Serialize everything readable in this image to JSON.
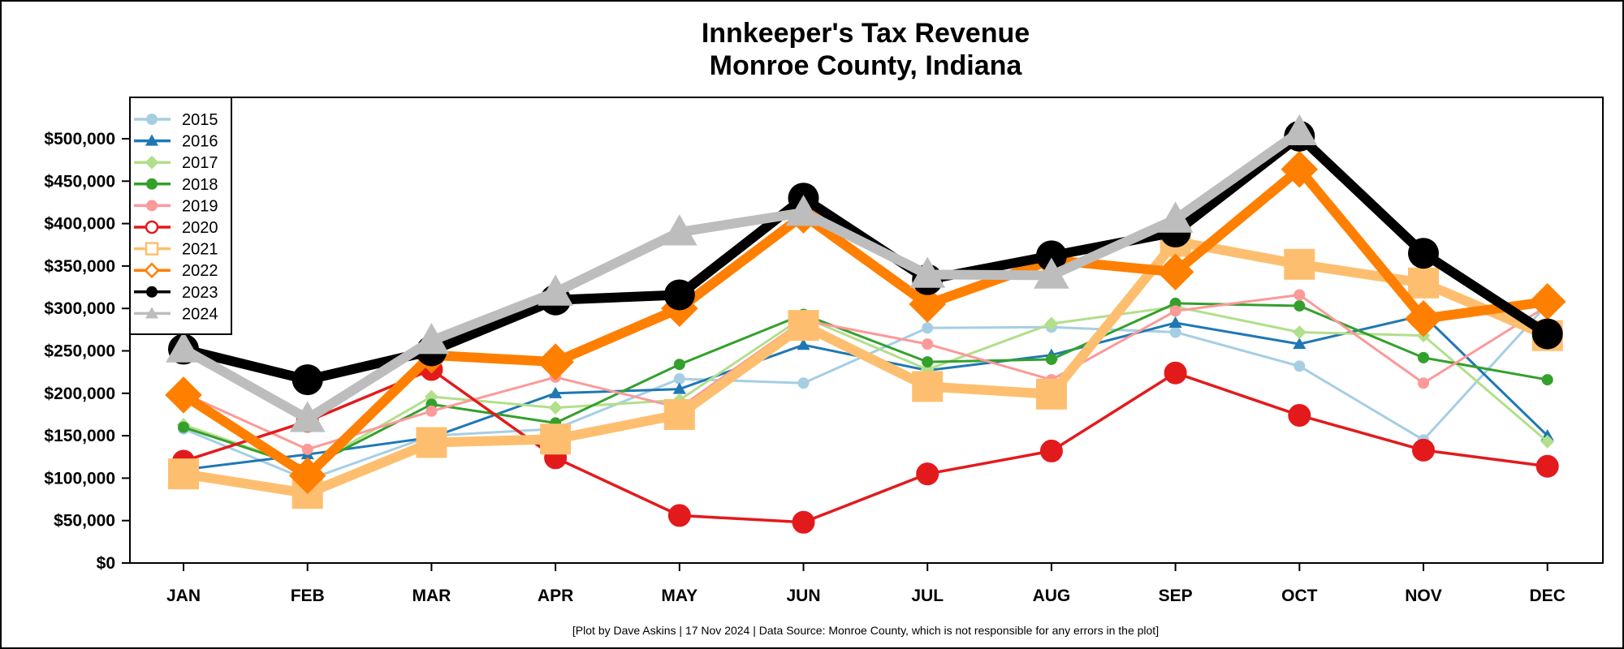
{
  "chart_data": {
    "type": "line",
    "title": "Innkeeper's Tax Revenue",
    "subtitle": "Monroe County, Indiana",
    "xlabel": "",
    "ylabel": "",
    "ylim": [
      0,
      550000
    ],
    "yticks": [
      0,
      50000,
      100000,
      150000,
      200000,
      250000,
      300000,
      350000,
      400000,
      450000,
      500000
    ],
    "ytick_labels": [
      "$0",
      "$50,000",
      "$100,000",
      "$150,000",
      "$200,000",
      "$250,000",
      "$300,000",
      "$350,000",
      "$400,000",
      "$450,000",
      "$500,000"
    ],
    "categories": [
      "JAN",
      "FEB",
      "MAR",
      "APR",
      "MAY",
      "JUN",
      "JUL",
      "AUG",
      "SEP",
      "OCT",
      "NOV",
      "DEC"
    ],
    "legend_position": "top-left",
    "grid": false,
    "series": [
      {
        "name": "2015",
        "color": "#a6cee3",
        "marker": "circle",
        "weight": "thin",
        "values": [
          158000,
          98000,
          150000,
          158000,
          217000,
          212000,
          277000,
          278000,
          272000,
          232000,
          145000,
          305000
        ]
      },
      {
        "name": "2016",
        "color": "#1f78b4",
        "marker": "triangle",
        "weight": "thin",
        "values": [
          110000,
          128000,
          148000,
          200000,
          205000,
          257000,
          227000,
          245000,
          283000,
          258000,
          292000,
          150000
        ]
      },
      {
        "name": "2017",
        "color": "#b2df8a",
        "marker": "diamond",
        "weight": "thin",
        "values": [
          163000,
          112000,
          196000,
          183000,
          192000,
          290000,
          228000,
          282000,
          302000,
          272000,
          268000,
          143000
        ]
      },
      {
        "name": "2018",
        "color": "#33a02c",
        "marker": "circle",
        "weight": "thin",
        "values": [
          160000,
          112000,
          187000,
          165000,
          234000,
          293000,
          237000,
          240000,
          306000,
          303000,
          242000,
          216000
        ]
      },
      {
        "name": "2019",
        "color": "#fb9a99",
        "marker": "circle",
        "weight": "thin",
        "values": [
          200000,
          134000,
          179000,
          219000,
          183000,
          286000,
          258000,
          216000,
          297000,
          316000,
          212000,
          303000
        ]
      },
      {
        "name": "2020",
        "color": "#e31a1c",
        "marker": "open-circle",
        "weight": "medium",
        "values": [
          120000,
          167000,
          228000,
          124000,
          56000,
          48000,
          105000,
          132000,
          224000,
          174000,
          133000,
          114000
        ]
      },
      {
        "name": "2021",
        "color": "#fdbf6f",
        "marker": "open-square",
        "weight": "thick",
        "values": [
          105000,
          82000,
          142000,
          146000,
          175000,
          280000,
          208000,
          199000,
          379000,
          352000,
          330000,
          268000
        ]
      },
      {
        "name": "2022",
        "color": "#ff7f00",
        "marker": "open-diamond",
        "weight": "thick",
        "values": [
          198000,
          103000,
          245000,
          237000,
          300000,
          410000,
          305000,
          357000,
          343000,
          464000,
          288000,
          308000
        ]
      },
      {
        "name": "2023",
        "color": "#000000",
        "marker": "circle",
        "weight": "thick",
        "values": [
          252000,
          216000,
          250000,
          310000,
          316000,
          430000,
          334000,
          362000,
          390000,
          503000,
          365000,
          270000
        ]
      },
      {
        "name": "2024",
        "color": "#bdbdbd",
        "marker": "triangle",
        "weight": "thick",
        "values": [
          252000,
          170000,
          262000,
          319000,
          390000,
          413000,
          340000,
          339000,
          405000,
          508000,
          null,
          null
        ]
      }
    ],
    "caption": "[Plot by Dave Askins | 17 Nov 2024 | Data Source: Monroe County, which is not responsible for any errors in the plot]"
  }
}
